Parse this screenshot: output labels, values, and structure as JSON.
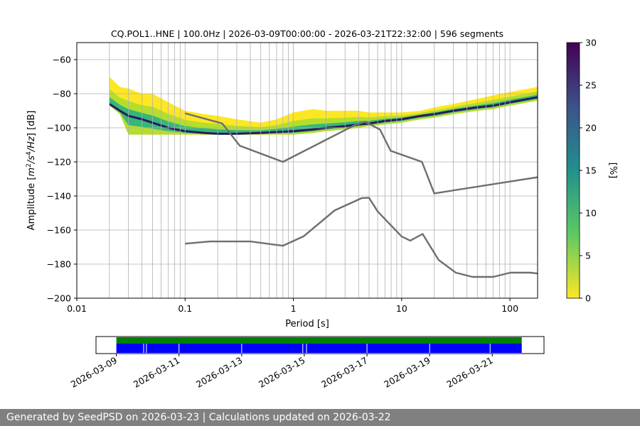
{
  "chart_data": {
    "type": "heatmap",
    "title": "CQ.POL1..HNE | 100.0Hz | 2026-03-09T00:00:00 - 2026-03-21T22:32:00 | 596 segments",
    "xlabel": "Period [s]",
    "ylabel_parts": [
      "Amplitude [",
      "m",
      "2",
      "/",
      "s",
      "4",
      "/",
      "Hz",
      "] [dB]"
    ],
    "x_scale": "log",
    "xlim": [
      0.01,
      180
    ],
    "ylim": [
      -200,
      -50
    ],
    "x_ticks": [
      0.01,
      0.1,
      1,
      10,
      100
    ],
    "x_tick_labels": [
      "0.01",
      "0.1",
      "1",
      "10",
      "100"
    ],
    "y_ticks": [
      -60,
      -80,
      -100,
      -120,
      -140,
      -160,
      -180,
      -200
    ],
    "y_tick_labels": [
      "−60",
      "−80",
      "−100",
      "−120",
      "−140",
      "−160",
      "−180",
      "−200"
    ],
    "grid_periods": [
      0.02,
      0.03,
      0.04,
      0.05,
      0.06,
      0.07,
      0.08,
      0.09,
      0.1,
      0.2,
      0.3,
      0.4,
      0.5,
      0.6,
      0.7,
      0.8,
      0.9,
      1,
      2,
      3,
      4,
      5,
      6,
      7,
      8,
      9,
      10,
      20,
      30,
      40,
      50,
      60,
      70,
      80,
      90,
      100
    ],
    "colorbar": {
      "label": "[%]",
      "range": [
        0,
        30
      ],
      "ticks": [
        0,
        5,
        10,
        15,
        20,
        25,
        30
      ],
      "tick_labels": [
        "0",
        "5",
        "10",
        "15",
        "20",
        "25",
        "30"
      ],
      "colormap": "viridis_r"
    },
    "psd_band": {
      "periods": [
        0.02,
        0.025,
        0.03,
        0.04,
        0.05,
        0.07,
        0.1,
        0.15,
        0.2,
        0.3,
        0.5,
        0.7,
        1,
        1.5,
        2,
        3,
        4,
        5,
        7,
        10,
        15,
        20,
        30,
        50,
        70,
        100,
        150,
        180
      ],
      "median_db": [
        -86,
        -90,
        -93,
        -95,
        -97,
        -100,
        -102,
        -103,
        -103.5,
        -103.5,
        -103,
        -102.5,
        -102,
        -101,
        -100,
        -99,
        -98,
        -97.5,
        -96,
        -95,
        -93,
        -92,
        -90,
        -88,
        -87,
        -85,
        -83,
        -82
      ],
      "low_db": [
        -87,
        -92,
        -104,
        -104,
        -104,
        -104,
        -104,
        -104,
        -104,
        -104,
        -104,
        -104,
        -104,
        -103,
        -102,
        -101,
        -100,
        -99,
        -98,
        -97,
        -95,
        -94,
        -92,
        -90,
        -89,
        -87,
        -85,
        -84
      ],
      "high_db": [
        -70,
        -76,
        -77,
        -80,
        -80,
        -85,
        -90,
        -92,
        -93,
        -95,
        -97,
        -95,
        -91,
        -89,
        -90,
        -90,
        -90,
        -91,
        -91,
        -91,
        -90,
        -88,
        -86,
        -83,
        -81,
        -79,
        -77,
        -76
      ]
    },
    "series": [
      {
        "periods": [
          0.1,
          0.17,
          0.4,
          0.8,
          1.24,
          2.4,
          4.3,
          5,
          6,
          10,
          12,
          15.6,
          21.9,
          31.6,
          45,
          70,
          101,
          154,
          180
        ],
        "values_db": [
          -168,
          -166.7,
          -166.7,
          -169.2,
          -163.7,
          -148.5,
          -141.2,
          -141.1,
          -149.1,
          -163.8,
          -166.2,
          -162.3,
          -177.5,
          -185,
          -187.5,
          -187.5,
          -185,
          -185,
          -185.5
        ]
      },
      {
        "periods": [
          0.1,
          0.22,
          0.32,
          0.8,
          3.8,
          4.6,
          6.3,
          7.9,
          15.4,
          20,
          180
        ],
        "values_db": [
          -91.5,
          -97.4,
          -110.5,
          -120,
          -98,
          -96.5,
          -101,
          -113.5,
          -120,
          -138.5,
          -129
        ]
      }
    ],
    "availability": {
      "start_date": "2026-03-09",
      "axis_end_date": "2026-03-23",
      "axis_range_days": [
        -0.65,
        13.65
      ],
      "tick_labels": [
        "2026-03-09",
        "2026-03-11",
        "2026-03-13",
        "2026-03-15",
        "2026-03-17",
        "2026-03-19",
        "2026-03-21"
      ],
      "tick_days": [
        0,
        2,
        4,
        6,
        8,
        10,
        12
      ],
      "coverage_days": [
        0,
        12.94
      ],
      "gap_days": [
        0.87,
        0.96,
        2.0,
        4.0,
        5.95,
        6.07,
        8.0,
        10.0,
        11.93
      ],
      "coverage_color": "#008000",
      "data_color": "#0000ff"
    }
  },
  "footer": {
    "text": "Generated by SeedPSD on 2026-03-23 | Calculations updated on 2026-03-22"
  }
}
